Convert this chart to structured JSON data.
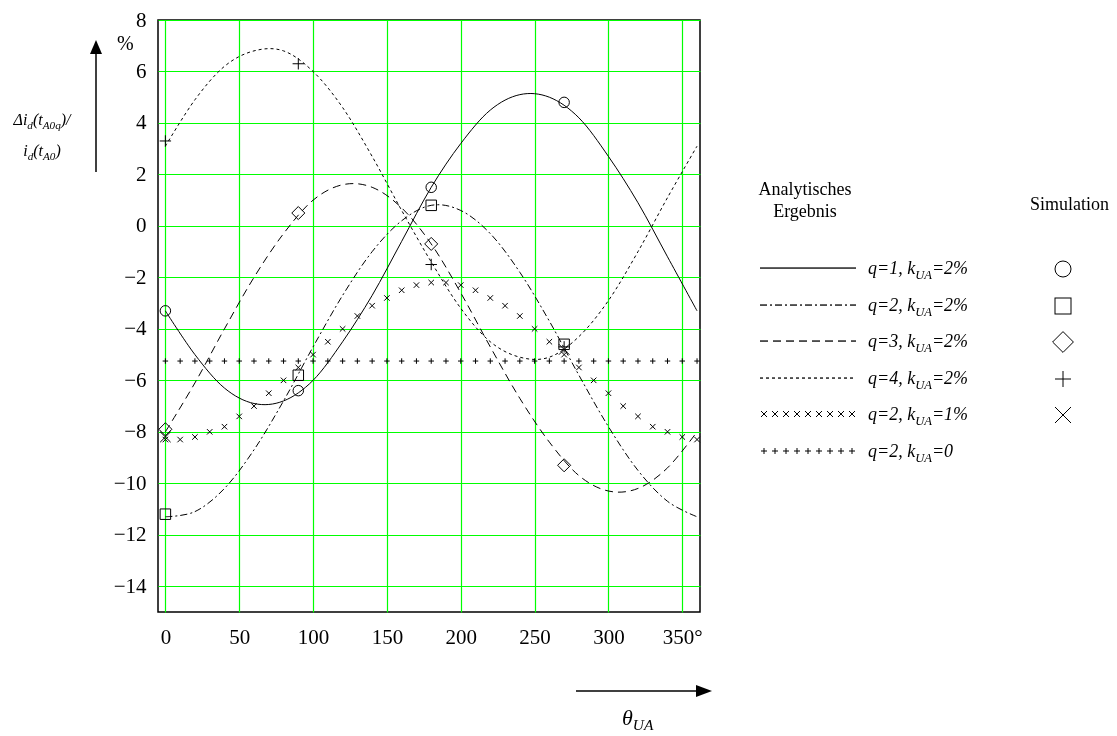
{
  "chart_data": {
    "type": "line",
    "ylabel": "Δi$_{d}$(t$_{A0q}$)/i$_{d}$(t$_{A0}$)",
    "xlabel": "θ$_{UA}$",
    "legend_title": "Analytisches Ergebnis",
    "annotations": [
      "%",
      "Simulation"
    ],
    "xlim": [
      -5,
      362
    ],
    "ylim": [
      -15,
      8
    ],
    "xticks": [
      0,
      50,
      100,
      150,
      200,
      250,
      300,
      {
        "value": 350,
        "label": "350°"
      }
    ],
    "yticks": [
      -14,
      -12,
      -10,
      -8,
      -6,
      -4,
      -2,
      0,
      2,
      4,
      6,
      8
    ],
    "grid": true,
    "legend": "right",
    "series": [
      {
        "name": "q=1, k$_{UA}$=2%",
        "type": "line",
        "line_style": "solid",
        "color": "#000000",
        "x": [
          0,
          20,
          40,
          60,
          80,
          100,
          120,
          140,
          160,
          180,
          200,
          220,
          240,
          260,
          280,
          300,
          320,
          340,
          360
        ],
        "values": [
          -3.3,
          -5.0,
          -6.3,
          -6.9,
          -6.8,
          -6.0,
          -4.5,
          -2.7,
          -0.6,
          1.5,
          3.2,
          4.5,
          5.1,
          5.0,
          4.2,
          2.7,
          0.9,
          -1.2,
          -3.3
        ]
      },
      {
        "name": "q=2, k$_{UA}$=2%",
        "type": "line",
        "line_style": "dashdot",
        "color": "#000000",
        "x": [
          0,
          20,
          40,
          60,
          80,
          100,
          120,
          140,
          160,
          180,
          200,
          220,
          240,
          260,
          280,
          300,
          320,
          340,
          360
        ],
        "values": [
          -11.3,
          -11.1,
          -10.2,
          -8.7,
          -6.8,
          -4.7,
          -2.7,
          -1.0,
          0.2,
          0.8,
          0.6,
          -0.3,
          -1.8,
          -3.7,
          -5.8,
          -7.8,
          -9.5,
          -10.7,
          -11.3
        ]
      },
      {
        "name": "q=3, k$_{UA}$=2%",
        "type": "line",
        "line_style": "dashed",
        "color": "#000000",
        "x": [
          0,
          20,
          40,
          60,
          80,
          100,
          120,
          140,
          160,
          180,
          200,
          220,
          240,
          260,
          280,
          300,
          320,
          340,
          360
        ],
        "values": [
          -8.0,
          -6.1,
          -4.0,
          -2.0,
          -0.3,
          1.0,
          1.6,
          1.5,
          0.7,
          -0.7,
          -2.6,
          -4.7,
          -6.7,
          -8.4,
          -9.7,
          -10.3,
          -10.2,
          -9.4,
          -8.0
        ]
      },
      {
        "name": "q=4, k$_{UA}$=2%",
        "type": "line",
        "line_style": "dotted",
        "color": "#000000",
        "x": [
          0,
          20,
          40,
          60,
          80,
          100,
          120,
          140,
          160,
          180,
          200,
          220,
          240,
          260,
          280,
          300,
          320,
          340,
          360
        ],
        "values": [
          3.1,
          4.9,
          6.2,
          6.8,
          6.8,
          6.0,
          4.6,
          2.7,
          0.6,
          -1.4,
          -3.2,
          -4.5,
          -5.1,
          -5.1,
          -4.3,
          -2.9,
          -1.0,
          1.1,
          3.1
        ]
      },
      {
        "name": "q=2, k$_{UA}$=1%",
        "type": "scatter",
        "marker": "x",
        "color": "#000000",
        "x": [
          0,
          10,
          20,
          30,
          40,
          50,
          60,
          70,
          80,
          90,
          100,
          110,
          120,
          130,
          140,
          150,
          160,
          170,
          180,
          190,
          200,
          210,
          220,
          230,
          240,
          250,
          260,
          270,
          280,
          290,
          300,
          310,
          320,
          330,
          340,
          350,
          360
        ],
        "values": [
          -8.3,
          -8.3,
          -8.2,
          -8.0,
          -7.8,
          -7.4,
          -7.0,
          -6.5,
          -6.0,
          -5.5,
          -5.0,
          -4.5,
          -4.0,
          -3.5,
          -3.1,
          -2.8,
          -2.5,
          -2.3,
          -2.2,
          -2.2,
          -2.3,
          -2.5,
          -2.8,
          -3.1,
          -3.5,
          -4.0,
          -4.5,
          -5.0,
          -5.5,
          -6.0,
          -6.5,
          -7.0,
          -7.4,
          -7.8,
          -8.0,
          -8.2,
          -8.3
        ]
      },
      {
        "name": "q=2, k$_{UA}$=0",
        "type": "scatter",
        "marker": "cross",
        "color": "#000000",
        "x": [
          0,
          10,
          20,
          30,
          40,
          50,
          60,
          70,
          80,
          90,
          100,
          110,
          120,
          130,
          140,
          150,
          160,
          170,
          180,
          190,
          200,
          210,
          220,
          230,
          240,
          250,
          260,
          270,
          280,
          290,
          300,
          310,
          320,
          330,
          340,
          350,
          360
        ],
        "values": [
          -5.25,
          -5.25,
          -5.25,
          -5.25,
          -5.25,
          -5.25,
          -5.25,
          -5.25,
          -5.25,
          -5.25,
          -5.25,
          -5.25,
          -5.25,
          -5.25,
          -5.25,
          -5.25,
          -5.25,
          -5.25,
          -5.25,
          -5.25,
          -5.25,
          -5.25,
          -5.25,
          -5.25,
          -5.25,
          -5.25,
          -5.25,
          -5.25,
          -5.25,
          -5.25,
          -5.25,
          -5.25,
          -5.25,
          -5.25,
          -5.25,
          -5.25,
          -5.25
        ]
      },
      {
        "type": "scatter",
        "marker": "circle",
        "color": "#000000",
        "x": [
          0,
          90,
          180,
          270
        ],
        "values": [
          -3.3,
          -6.4,
          1.5,
          4.8
        ]
      },
      {
        "type": "scatter",
        "marker": "square",
        "color": "#000000",
        "x": [
          0,
          90,
          180,
          270
        ],
        "values": [
          -11.2,
          -5.8,
          0.8,
          -4.6
        ]
      },
      {
        "type": "scatter",
        "marker": "diamond",
        "color": "#000000",
        "x": [
          0,
          90,
          180,
          270
        ],
        "values": [
          -7.9,
          0.5,
          -0.7,
          -9.3
        ]
      },
      {
        "type": "scatter",
        "marker": "cross",
        "color": "#000000",
        "x": [
          0,
          90,
          180,
          270
        ],
        "values": [
          3.3,
          6.3,
          -1.5,
          -4.7
        ]
      },
      {
        "type": "scatter",
        "marker": "x",
        "color": "#000000",
        "x": [
          0,
          90,
          180,
          270
        ],
        "values": [
          -8.2,
          null,
          null,
          -4.8
        ]
      }
    ]
  }
}
